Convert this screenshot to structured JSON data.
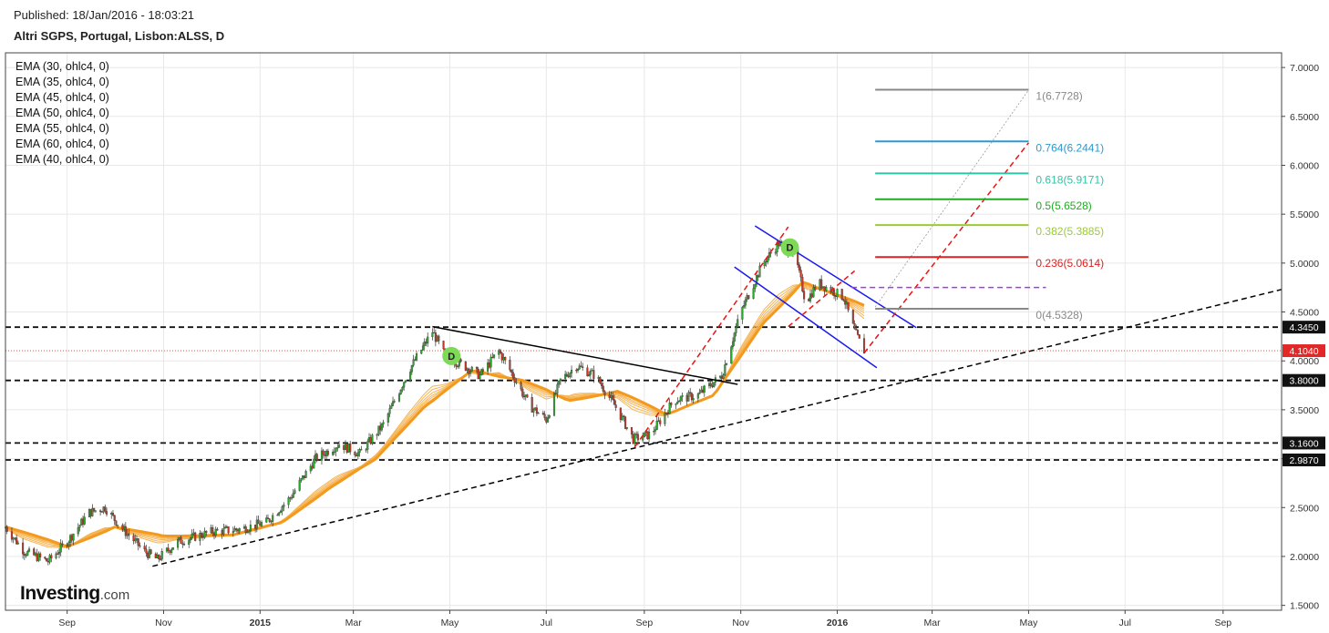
{
  "header": {
    "published": "Published: 18/Jan/2016 - 18:03:21",
    "symbol": "Altri SGPS, Portugal, Lisbon:ALSS, D"
  },
  "brand": {
    "name": "Investing",
    "suffix": ".com"
  },
  "legend": [
    "EMA (30, ohlc4, 0)",
    "EMA (35, ohlc4, 0)",
    "EMA (45, ohlc4, 0)",
    "EMA (50, ohlc4, 0)",
    "EMA (55, ohlc4, 0)",
    "EMA (60, ohlc4, 0)",
    "EMA (40, ohlc4, 0)"
  ],
  "chart_data": {
    "type": "candlestick",
    "title": "Altri SGPS, Portugal, Lisbon:ALSS, D",
    "y_axis": {
      "ticks": [
        "7.0000",
        "6.5000",
        "6.0000",
        "5.5000",
        "5.0000",
        "4.5000",
        "4.0000",
        "3.5000",
        "3.0000",
        "2.5000",
        "2.0000",
        "1.5000"
      ],
      "tick_values": [
        7.0,
        6.5,
        6.0,
        5.5,
        5.0,
        4.5,
        4.0,
        3.5,
        3.0,
        2.5,
        2.0,
        1.5
      ],
      "ylim": [
        1.45,
        7.15
      ],
      "position": "right"
    },
    "x_axis": {
      "ticks": [
        "Sep",
        "Nov",
        "2015",
        "Mar",
        "May",
        "Jul",
        "Sep",
        "Nov",
        "2016",
        "Mar",
        "May",
        "Jul",
        "Sep"
      ],
      "tick_dates": [
        "2014-09-01",
        "2014-11-01",
        "2015-01-01",
        "2015-03-01",
        "2015-05-01",
        "2015-07-01",
        "2015-09-01",
        "2015-11-01",
        "2016-01-01",
        "2016-03-01",
        "2016-05-01",
        "2016-07-01",
        "2016-09-01"
      ],
      "bold_ticks": [
        "2015",
        "2016"
      ],
      "range": [
        "2014-07-24",
        "2016-10-08"
      ]
    },
    "grid": true,
    "price_labels": [
      {
        "text": "4.3450",
        "value": 4.345,
        "style": "dark"
      },
      {
        "text": "4.1040",
        "value": 4.104,
        "style": "red"
      },
      {
        "text": "3.8000",
        "value": 3.8,
        "style": "dark"
      },
      {
        "text": "3.1600",
        "value": 3.16,
        "style": "dark"
      },
      {
        "text": "2.9870",
        "value": 2.987,
        "style": "dark"
      }
    ],
    "horizontal_levels": [
      4.345,
      3.8,
      3.16,
      2.987
    ],
    "current_price": 4.104,
    "price_path": [
      [
        "2014-07-24",
        2.3
      ],
      [
        "2014-08-05",
        2.05
      ],
      [
        "2014-08-20",
        1.95
      ],
      [
        "2014-09-01",
        2.15
      ],
      [
        "2014-09-15",
        2.45
      ],
      [
        "2014-09-25",
        2.5
      ],
      [
        "2014-10-05",
        2.3
      ],
      [
        "2014-10-20",
        2.05
      ],
      [
        "2014-10-28",
        1.97
      ],
      [
        "2014-11-10",
        2.15
      ],
      [
        "2014-12-01",
        2.25
      ],
      [
        "2014-12-20",
        2.28
      ],
      [
        "2015-01-05",
        2.35
      ],
      [
        "2015-01-20",
        2.6
      ],
      [
        "2015-02-05",
        3.0
      ],
      [
        "2015-02-20",
        3.15
      ],
      [
        "2015-03-05",
        3.05
      ],
      [
        "2015-03-20",
        3.35
      ],
      [
        "2015-04-05",
        3.9
      ],
      [
        "2015-04-20",
        4.3
      ],
      [
        "2015-04-28",
        4.05
      ],
      [
        "2015-05-10",
        3.95
      ],
      [
        "2015-05-20",
        3.85
      ],
      [
        "2015-06-01",
        4.1
      ],
      [
        "2015-06-10",
        3.85
      ],
      [
        "2015-06-20",
        3.55
      ],
      [
        "2015-07-01",
        3.4
      ],
      [
        "2015-07-10",
        3.8
      ],
      [
        "2015-07-20",
        3.95
      ],
      [
        "2015-08-01",
        3.85
      ],
      [
        "2015-08-15",
        3.5
      ],
      [
        "2015-08-25",
        3.2
      ],
      [
        "2015-09-05",
        3.25
      ],
      [
        "2015-09-20",
        3.6
      ],
      [
        "2015-10-05",
        3.65
      ],
      [
        "2015-10-20",
        3.85
      ],
      [
        "2015-11-01",
        4.5
      ],
      [
        "2015-11-15",
        5.0
      ],
      [
        "2015-11-25",
        5.2
      ],
      [
        "2015-12-05",
        5.1
      ],
      [
        "2015-12-12",
        4.6
      ],
      [
        "2015-12-20",
        4.8
      ],
      [
        "2016-01-05",
        4.65
      ],
      [
        "2016-01-12",
        4.3
      ],
      [
        "2016-01-18",
        4.104
      ]
    ],
    "ema_band": [
      [
        "2014-07-24",
        2.3
      ],
      [
        "2014-09-01",
        2.1
      ],
      [
        "2014-10-01",
        2.3
      ],
      [
        "2014-11-01",
        2.2
      ],
      [
        "2014-12-15",
        2.22
      ],
      [
        "2015-01-15",
        2.35
      ],
      [
        "2015-02-15",
        2.72
      ],
      [
        "2015-03-15",
        3.0
      ],
      [
        "2015-04-15",
        3.55
      ],
      [
        "2015-05-15",
        3.9
      ],
      [
        "2015-06-15",
        3.8
      ],
      [
        "2015-07-15",
        3.6
      ],
      [
        "2015-08-15",
        3.68
      ],
      [
        "2015-09-15",
        3.45
      ],
      [
        "2015-10-15",
        3.65
      ],
      [
        "2015-11-15",
        4.4
      ],
      [
        "2015-12-10",
        4.8
      ],
      [
        "2016-01-05",
        4.65
      ],
      [
        "2016-01-18",
        4.55
      ]
    ],
    "trendlines": [
      {
        "style": "dashed",
        "color": "#000000",
        "points": [
          [
            "2014-10-25",
            1.9
          ],
          [
            "2016-10-08",
            4.73
          ]
        ]
      },
      {
        "style": "solid",
        "color": "#000000",
        "points": [
          [
            "2015-04-20",
            4.35
          ],
          [
            "2015-10-30",
            3.76
          ]
        ]
      },
      {
        "style": "solid",
        "color": "#1a1aee",
        "points": [
          [
            "2015-11-10",
            5.38
          ],
          [
            "2016-02-20",
            4.34
          ]
        ]
      },
      {
        "style": "solid",
        "color": "#1a1aee",
        "points": [
          [
            "2015-10-28",
            4.96
          ],
          [
            "2016-01-26",
            3.93
          ]
        ]
      },
      {
        "style": "dashed",
        "color": "#ee1111",
        "points": [
          [
            "2015-08-26",
            3.12
          ],
          [
            "2015-12-01",
            5.37
          ]
        ]
      },
      {
        "style": "dashed",
        "color": "#ee1111",
        "points": [
          [
            "2016-01-18",
            4.08
          ],
          [
            "2016-05-01",
            6.23
          ]
        ]
      },
      {
        "style": "dashed",
        "color": "#ee1111",
        "points": [
          [
            "2015-12-01",
            4.35
          ],
          [
            "2016-01-12",
            4.92
          ]
        ]
      },
      {
        "style": "dotted",
        "color": "#999999",
        "points": [
          [
            "2016-01-25",
            4.55
          ],
          [
            "2016-05-01",
            6.77
          ]
        ]
      },
      {
        "style": "dashed",
        "color": "#aa33ff",
        "points": [
          [
            "2016-01-10",
            4.75
          ],
          [
            "2016-05-12",
            4.75
          ]
        ]
      }
    ],
    "fibonacci": [
      {
        "label": "1(6.7728)",
        "value": 6.7728,
        "color": "#888888"
      },
      {
        "label": "0.764(6.2441)",
        "value": 6.2441,
        "color": "#2a9ad0"
      },
      {
        "label": "0.618(5.9171)",
        "value": 5.9171,
        "color": "#2ec4a8"
      },
      {
        "label": "0.5(5.6528)",
        "value": 5.6528,
        "color": "#22aa22"
      },
      {
        "label": "0.382(5.3885)",
        "value": 5.3885,
        "color": "#99cc33"
      },
      {
        "label": "0.236(5.0614)",
        "value": 5.0614,
        "color": "#dd2222"
      },
      {
        "label": "0(4.5328)",
        "value": 4.5328,
        "color": "#888888"
      }
    ],
    "fib_range": [
      "2016-01-25",
      "2016-05-01"
    ],
    "dividend_markers": [
      {
        "label": "D",
        "date": "2015-05-02",
        "value": 4.05
      },
      {
        "label": "D",
        "date": "2015-12-02",
        "value": 5.16
      }
    ]
  }
}
